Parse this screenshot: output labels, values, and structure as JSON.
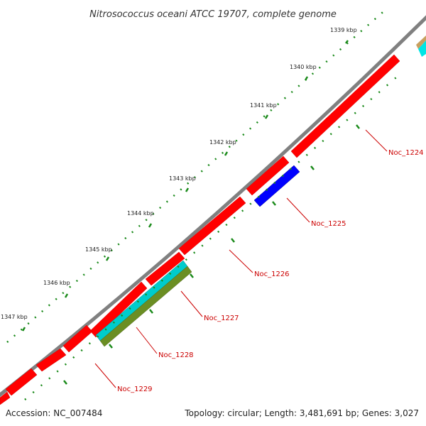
{
  "title": "Nitrosococcus oceani ATCC 19707, complete genome",
  "footer": {
    "accession": "Accession: NC_007484",
    "summary": "Topology: circular; Length: 3,481,691 bp; Genes: 3,027"
  },
  "kbp_labels": [
    "1339 kbp",
    "1340 kbp",
    "1341 kbp",
    "1342 kbp",
    "1343 kbp",
    "1344 kbp",
    "1345 kbp",
    "1346 kbp",
    "1347 kbp"
  ],
  "genes": [
    {
      "name": "Noc_1224",
      "color": "#ff0000"
    },
    {
      "name": "Noc_1225",
      "color": "#0000ff"
    },
    {
      "name": "Noc_1226",
      "color": "#ff0000"
    },
    {
      "name": "Noc_1227",
      "color": "#00cccc"
    },
    {
      "name": "Noc_1228",
      "color": "#6b8e23"
    },
    {
      "name": "Noc_1229",
      "color": "#ff0000"
    }
  ],
  "colors": {
    "cds_forward": "#ff0000",
    "backbone": "#808080",
    "ticks": "#1a8a1a",
    "label": "#cc0000"
  }
}
